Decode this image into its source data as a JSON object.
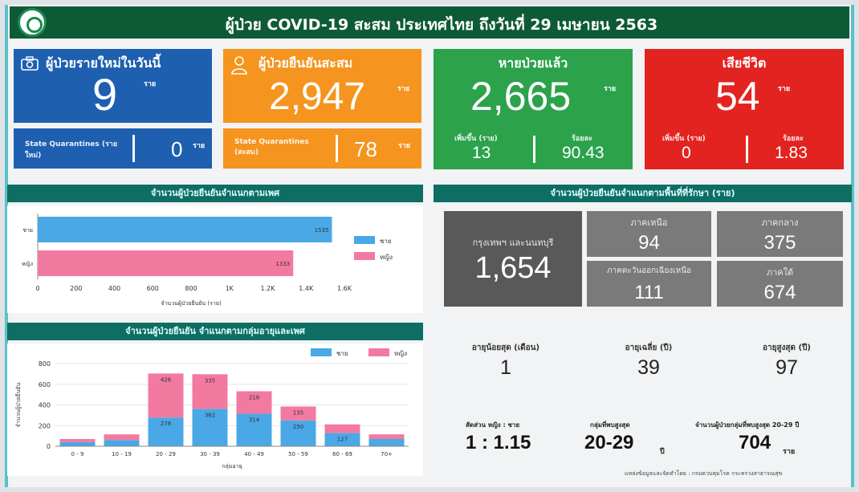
{
  "header": {
    "title": "ผู้ป่วย COVID-19 สะสม  ประเทศไทย ถึงวันที่ 29 เมษายน 2563"
  },
  "cards": {
    "new_cases": {
      "label": "ผู้ป่วยรายใหม่ในวันนี้",
      "value": "9",
      "unit": "ราย",
      "sub_label": "State Quarantines (รายใหม่)",
      "sub_value": "0",
      "sub_unit": "ราย",
      "color": "#1e5fb0"
    },
    "total_cases": {
      "label": "ผู้ป่วยยืนยันสะสม",
      "value": "2,947",
      "unit": "ราย",
      "sub_label": "State Quarantines (สะสม)",
      "sub_value": "78",
      "sub_unit": "ราย",
      "color": "#f5941e"
    },
    "recovered": {
      "label": "หายป่วยแล้ว",
      "value": "2,665",
      "unit": "ราย",
      "inc_label": "เพิ่มขึ้น (ราย)",
      "inc_value": "13",
      "pct_label": "ร้อยละ",
      "pct_value": "90.43",
      "color": "#2ca24b"
    },
    "deaths": {
      "label": "เสียชีวิต",
      "value": "54",
      "unit": "ราย",
      "inc_label": "เพิ่มขึ้น (ราย)",
      "inc_value": "0",
      "pct_label": "ร้อยละ",
      "pct_value": "1.83",
      "color": "#e32320"
    }
  },
  "gender_section": {
    "title": "จำนวนผู้ป่วยยืนยันจำแนกตามเพศ"
  },
  "region_section": {
    "title": "จำนวนผู้ป่วยยืนยันจำแนกตามพื้นที่ที่รักษา (ราย)"
  },
  "age_section": {
    "title": "จำนวนผู้ป่วยยืนยัน จำแนกตามกลุ่มอายุและเพศ"
  },
  "chart_data": [
    {
      "type": "bar",
      "orientation": "horizontal",
      "categories": [
        "ชาย",
        "หญิง"
      ],
      "values": [
        1535,
        1333
      ],
      "colors": [
        "#4aa8e6",
        "#f27aa0"
      ],
      "xlabel": "จำนวนผู้ป่วยยืนยัน (ราย)",
      "xlim": [
        0,
        1600
      ],
      "xticks": [
        "0",
        "200",
        "400",
        "600",
        "800",
        "1K",
        "1.2K",
        "1.4K",
        "1.6K"
      ],
      "legend": [
        "ชาย",
        "หญิง"
      ],
      "legend_position": "right"
    },
    {
      "type": "bar",
      "stacked": true,
      "categories": [
        "0 - 9",
        "10 - 19",
        "20 - 29",
        "30 - 39",
        "40 - 49",
        "50 - 59",
        "60 - 69",
        "70+"
      ],
      "series": [
        {
          "name": "ชาย",
          "values": [
            40,
            60,
            278,
            362,
            314,
            250,
            127,
            70
          ],
          "color": "#4aa8e6"
        },
        {
          "name": "หญิง",
          "values": [
            30,
            55,
            426,
            335,
            218,
            135,
            85,
            45
          ],
          "color": "#f27aa0"
        }
      ],
      "data_labels": {
        "male": [
          "",
          "",
          "278",
          "362",
          "314",
          "250",
          "127",
          ""
        ],
        "female": [
          "",
          "",
          "426",
          "335",
          "218",
          "135",
          "",
          ""
        ]
      },
      "ylabel": "จำนวนผู้ป่วยยืนยัน",
      "xlabel": "กลุ่มอายุ",
      "ylim": [
        0,
        800
      ],
      "yticks": [
        "0",
        "200",
        "400",
        "600",
        "800"
      ],
      "legend": [
        "ชาย",
        "หญิง"
      ],
      "legend_position": "top-right"
    }
  ],
  "regions": {
    "bangkok": {
      "label": "กรุงเทพฯ และนนทบุรี",
      "value": "1,654"
    },
    "north": {
      "label": "ภาคเหนือ",
      "value": "94"
    },
    "central": {
      "label": "ภาคกลาง",
      "value": "375"
    },
    "northeast": {
      "label": "ภาคตะวันออกเฉียงเหนือ",
      "value": "111"
    },
    "south": {
      "label": "ภาคใต้",
      "value": "674"
    }
  },
  "age_stats": {
    "min": {
      "label": "อายุน้อยสุด (เดือน)",
      "value": "1"
    },
    "median": {
      "label": "อายุเฉลี่ย (ปี)",
      "value": "39"
    },
    "max": {
      "label": "อายุสูงสุด (ปี)",
      "value": "97"
    }
  },
  "footer": {
    "ratio_label": "สัดส่วน  หญิง : ชาย",
    "ratio_value": "1 : 1.15",
    "top_group_label": "กลุ่มที่พบสูงสุด",
    "top_group_value": "20-29",
    "top_group_unit": "ปี",
    "top_count_label": "จำนวนผู้ป่วยกลุ่มที่พบสูงสุด 20-29 ปี",
    "top_count_value": "704",
    "top_count_unit": "ราย",
    "source": "แหล่งข้อมูลและจัดทำโดย : กรมควบคุมโรค กระทรวงสาธารณสุข"
  }
}
